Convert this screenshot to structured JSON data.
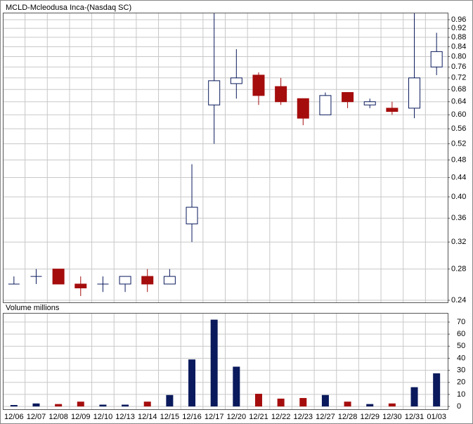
{
  "chart_data": [
    {
      "type": "candlestick",
      "title": "MCLD-Mcleodusa Inca-(Nasdaq SC)",
      "open": [
        0.26,
        0.27,
        0.28,
        0.26,
        0.26,
        0.26,
        0.27,
        0.26,
        0.35,
        0.63,
        0.7,
        0.73,
        0.69,
        0.65,
        0.6,
        0.67,
        0.63,
        0.62,
        0.62,
        0.76
      ],
      "high": [
        0.27,
        0.28,
        0.28,
        0.27,
        0.27,
        0.27,
        0.28,
        0.28,
        0.47,
        1.0,
        0.83,
        0.74,
        0.72,
        0.65,
        0.67,
        0.67,
        0.65,
        0.64,
        1.0,
        0.9
      ],
      "low": [
        0.26,
        0.26,
        0.26,
        0.245,
        0.25,
        0.25,
        0.25,
        0.26,
        0.32,
        0.52,
        0.65,
        0.63,
        0.63,
        0.57,
        0.6,
        0.62,
        0.62,
        0.6,
        0.59,
        0.73
      ],
      "close": [
        0.26,
        0.27,
        0.26,
        0.255,
        0.26,
        0.27,
        0.26,
        0.27,
        0.38,
        0.71,
        0.72,
        0.66,
        0.64,
        0.59,
        0.66,
        0.64,
        0.64,
        0.61,
        0.72,
        0.82
      ],
      "up_color": "#0a1a5c",
      "down_color": "#a50d0d",
      "ylim": [
        0.2375,
        0.994
      ],
      "log_scale": true,
      "grid": true,
      "yticks": [
        0.24,
        0.28,
        0.32,
        0.36,
        {
          "value": 0.4,
          "label": "0.40"
        },
        0.44,
        0.48,
        0.52,
        0.56,
        {
          "value": 0.6,
          "label": "0.60"
        },
        0.64,
        0.68,
        0.72,
        0.76,
        {
          "value": 0.8,
          "label": "0.80"
        },
        0.84,
        0.88,
        0.92,
        0.96
      ]
    },
    {
      "type": "bar",
      "title": "Volume  millions",
      "categories": [
        "12/06",
        "12/07",
        "12/08",
        "12/09",
        "12/10",
        "12/13",
        "12/14",
        "12/15",
        "12/16",
        "12/17",
        "12/20",
        "12/21",
        "12/22",
        "12/23",
        "12/27",
        "12/28",
        "12/29",
        "12/30",
        "12/31",
        "01/03"
      ],
      "values": [
        1.2,
        2.5,
        2,
        4,
        1.5,
        1.5,
        4,
        9.5,
        39,
        72,
        33,
        10.5,
        6.5,
        7,
        9.5,
        4,
        2,
        2.5,
        16,
        27.5
      ],
      "colors": [
        "#0a1a5c",
        "#0a1a5c",
        "#a50d0d",
        "#a50d0d",
        "#0a1a5c",
        "#0a1a5c",
        "#a50d0d",
        "#0a1a5c",
        "#0a1a5c",
        "#0a1a5c",
        "#0a1a5c",
        "#a50d0d",
        "#a50d0d",
        "#a50d0d",
        "#0a1a5c",
        "#a50d0d",
        "#0a1a5c",
        "#a50d0d",
        "#0a1a5c",
        "#0a1a5c"
      ],
      "ylim": [
        -2.3,
        77.6
      ],
      "grid": true,
      "yticks": [
        0,
        10,
        20,
        30,
        40,
        50,
        60,
        70
      ]
    }
  ]
}
